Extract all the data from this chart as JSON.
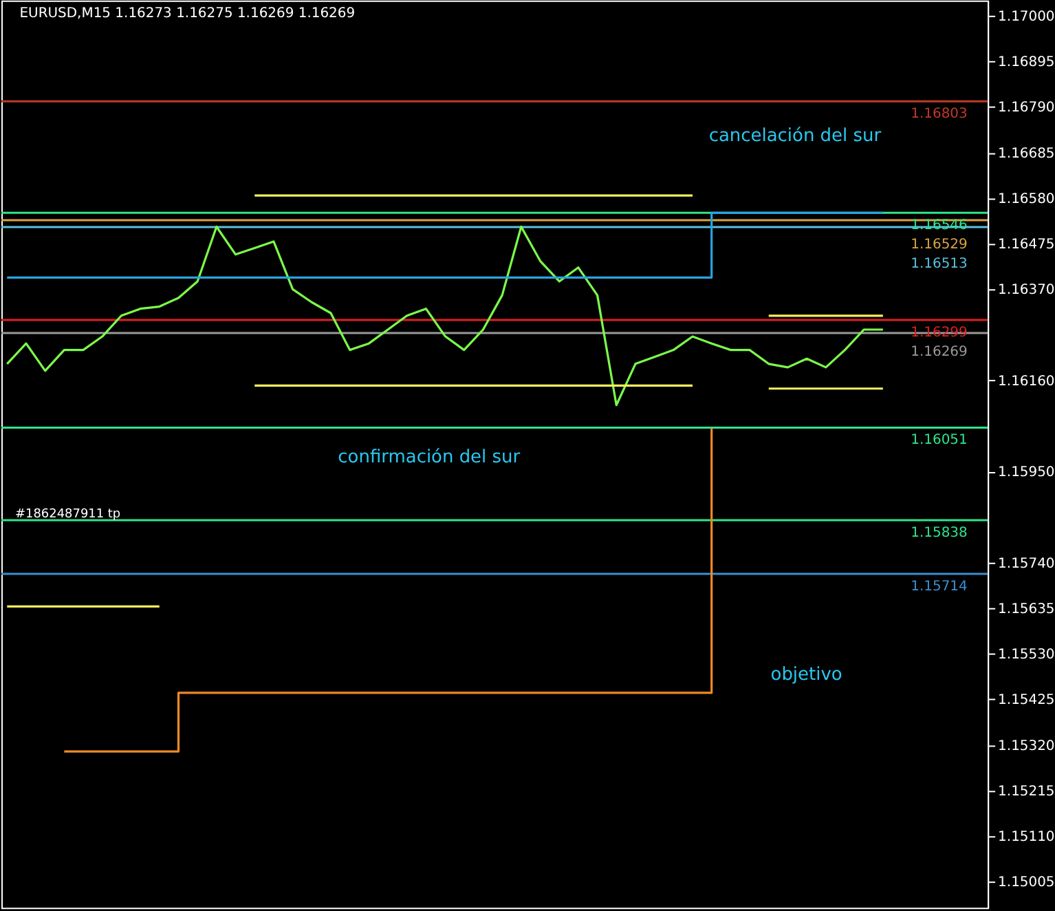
{
  "chart_data": {
    "type": "line",
    "title": "EURUSD,M15  1.16273 1.16275 1.16269 1.16269",
    "categories": [
      null,
      null,
      null,
      null,
      null,
      null,
      null,
      null,
      null,
      null,
      null,
      null,
      null,
      null,
      null,
      null,
      null,
      null,
      null,
      null,
      null,
      null,
      null,
      null,
      null,
      null,
      null,
      null,
      null,
      null,
      null,
      null,
      null,
      null,
      null,
      null,
      null,
      null,
      null,
      null,
      null,
      null,
      null,
      null,
      null,
      null,
      null
    ],
    "series": [
      {
        "color": "#7cfc4a",
        "values": [
          1.16198,
          1.16245,
          1.16182,
          1.1623,
          1.1623,
          1.16261,
          1.16309,
          1.16325,
          1.1633,
          1.1635,
          1.16388,
          1.16514,
          1.1645,
          1.16465,
          1.1648,
          1.1637,
          1.1634,
          1.16315,
          1.1623,
          1.16245,
          1.16277,
          1.16309,
          1.16325,
          1.16262,
          1.1623,
          1.16277,
          1.16356,
          1.16514,
          1.16435,
          1.16388,
          1.1642,
          1.16356,
          1.16103,
          1.16198,
          1.16214,
          1.1623,
          1.16261,
          1.16245,
          1.1623,
          1.1623,
          1.16198,
          1.1619,
          1.1621,
          1.1619,
          1.1623,
          1.16277,
          1.16277
        ]
      },
      {
        "type": "step",
        "color": "#29a3e0",
        "values": [
          1.16397,
          1.16397,
          1.16397,
          1.16397,
          1.16397,
          1.16397,
          1.16397,
          1.16397,
          1.16397,
          1.16397,
          1.16397,
          1.16397,
          1.16397,
          1.16397,
          1.16397,
          1.16397,
          1.16397,
          1.16397,
          1.16397,
          1.16397,
          1.16397,
          1.16397,
          1.16397,
          1.16397,
          1.16397,
          1.16397,
          1.16397,
          1.16397,
          1.16397,
          1.16397,
          1.16397,
          1.16397,
          1.16397,
          1.16397,
          1.16397,
          1.16397,
          1.16397,
          1.16546,
          1.16546,
          1.16546,
          1.16546,
          1.16546,
          1.16546,
          1.16546,
          1.16546,
          1.16546,
          1.16546
        ]
      },
      {
        "type": "step",
        "color": "#f08a24",
        "values": [
          null,
          null,
          null,
          1.15305,
          1.15305,
          1.15305,
          1.15305,
          1.15305,
          1.15305,
          1.1544,
          1.1544,
          1.1544,
          1.1544,
          1.1544,
          1.1544,
          1.1544,
          1.1544,
          1.1544,
          1.1544,
          1.1544,
          1.1544,
          1.1544,
          1.1544,
          1.1544,
          1.1544,
          1.1544,
          1.1544,
          1.1544,
          1.1544,
          1.1544,
          1.1544,
          1.1544,
          1.1544,
          1.1544,
          1.1544,
          1.1544,
          1.1544,
          1.1605,
          null,
          null,
          null,
          null,
          null,
          null,
          null,
          null,
          null
        ]
      },
      {
        "color": "#f5f05a",
        "values": [
          null,
          null,
          null,
          null,
          null,
          null,
          null,
          null,
          null,
          null,
          null,
          null,
          null,
          1.16586,
          1.16586,
          1.16586,
          1.16586,
          1.16586,
          1.16586,
          1.16586,
          1.16586,
          1.16586,
          1.16586,
          1.16586,
          1.16586,
          1.16586,
          1.16586,
          1.16586,
          1.16586,
          1.16586,
          1.16586,
          1.16586,
          1.16586,
          1.16586,
          1.16586,
          1.16586,
          1.16586,
          null,
          null,
          null,
          null,
          null,
          null,
          null,
          null,
          null,
          null
        ]
      },
      {
        "color": "#f5f05a",
        "values": [
          null,
          null,
          null,
          null,
          null,
          null,
          null,
          null,
          null,
          null,
          null,
          null,
          null,
          1.16148,
          1.16148,
          1.16148,
          1.16148,
          1.16148,
          1.16148,
          1.16148,
          1.16148,
          1.16148,
          1.16148,
          1.16148,
          1.16148,
          1.16148,
          1.16148,
          1.16148,
          1.16148,
          1.16148,
          1.16148,
          1.16148,
          1.16148,
          1.16148,
          1.16148,
          1.16148,
          1.16148,
          null,
          null,
          null,
          null,
          null,
          null,
          null,
          null,
          null,
          null
        ]
      },
      {
        "color": "#f5f05a",
        "values": [
          null,
          null,
          null,
          null,
          null,
          null,
          null,
          null,
          null,
          null,
          null,
          null,
          null,
          null,
          null,
          null,
          null,
          null,
          null,
          null,
          null,
          null,
          null,
          null,
          null,
          null,
          null,
          null,
          null,
          null,
          null,
          null,
          null,
          null,
          null,
          null,
          null,
          null,
          null,
          null,
          1.16309,
          1.16309,
          1.16309,
          1.16309,
          1.16309,
          1.16309,
          1.16309
        ]
      },
      {
        "color": "#f5f05a",
        "values": [
          null,
          null,
          null,
          null,
          null,
          null,
          null,
          null,
          null,
          null,
          null,
          null,
          null,
          null,
          null,
          null,
          null,
          null,
          null,
          null,
          null,
          null,
          null,
          null,
          null,
          null,
          null,
          null,
          null,
          null,
          null,
          null,
          null,
          null,
          null,
          null,
          null,
          null,
          null,
          null,
          1.16141,
          1.16141,
          1.16141,
          1.16141,
          1.16141,
          1.16141,
          1.16141
        ]
      },
      {
        "color": "#f5f05a",
        "values": [
          1.15639,
          1.15639,
          1.15639,
          1.15639,
          1.15639,
          1.15639,
          1.15639,
          1.15639,
          1.15639,
          null,
          null,
          null,
          null,
          null,
          null,
          null,
          null,
          null,
          null,
          null,
          null,
          null,
          null,
          null,
          null,
          null,
          null,
          null,
          null,
          null,
          null,
          null,
          null,
          null,
          null,
          null,
          null,
          null,
          null,
          null,
          null,
          null,
          null,
          null,
          null,
          null,
          null
        ]
      }
    ],
    "ylim": [
      1.14945,
      1.17035
    ],
    "yticks": [
      {
        "value": 1.17,
        "label": "1.17000"
      },
      {
        "value": 1.16895,
        "label": "1.16895"
      },
      {
        "value": 1.1679,
        "label": "1.16790"
      },
      {
        "value": 1.16685,
        "label": "1.16685"
      },
      {
        "value": 1.1658,
        "label": "1.16580"
      },
      {
        "value": 1.16475,
        "label": "1.16475"
      },
      {
        "value": 1.1637,
        "label": "1.16370"
      },
      {
        "value": 1.1616,
        "label": "1.16160"
      },
      {
        "value": 1.1595,
        "label": "1.15950"
      },
      {
        "value": 1.1574,
        "label": "1.15740"
      },
      {
        "value": 1.15635,
        "label": "1.15635"
      },
      {
        "value": 1.1553,
        "label": "1.15530"
      },
      {
        "value": 1.15425,
        "label": "1.15425"
      },
      {
        "value": 1.1532,
        "label": "1.15320"
      },
      {
        "value": 1.15215,
        "label": "1.15215"
      },
      {
        "value": 1.1511,
        "label": "1.15110"
      },
      {
        "value": 1.15005,
        "label": "1.15005"
      }
    ],
    "ref_lines": [
      {
        "axis": "y",
        "value": 1.16803,
        "label": "1.16803",
        "color": "#c0392b"
      },
      {
        "axis": "y",
        "value": 1.16546,
        "label": "1.16546",
        "color": "#2ee58c"
      },
      {
        "axis": "y",
        "value": 1.16529,
        "label": "1.16529",
        "color": "#d9a441"
      },
      {
        "axis": "y",
        "value": 1.16513,
        "label": "1.16513",
        "color": "#5bc0de"
      },
      {
        "axis": "y",
        "value": 1.16299,
        "label": "1.16299",
        "color": "#e02020"
      },
      {
        "axis": "y",
        "value": 1.16269,
        "label": "1.16269",
        "color": "#9a9a9a"
      },
      {
        "axis": "y",
        "value": 1.16051,
        "label": "1.16051",
        "color": "#2ee58c"
      },
      {
        "axis": "y",
        "value": 1.15838,
        "label": "1.15838",
        "color": "#2ee58c"
      },
      {
        "axis": "y",
        "value": 1.15714,
        "label": "1.15714",
        "color": "#3a8fd0"
      }
    ],
    "annotations": [
      "cancelación del sur",
      "confirmación del sur",
      "objetivo",
      "#1862487911 tp"
    ],
    "grid": false
  }
}
